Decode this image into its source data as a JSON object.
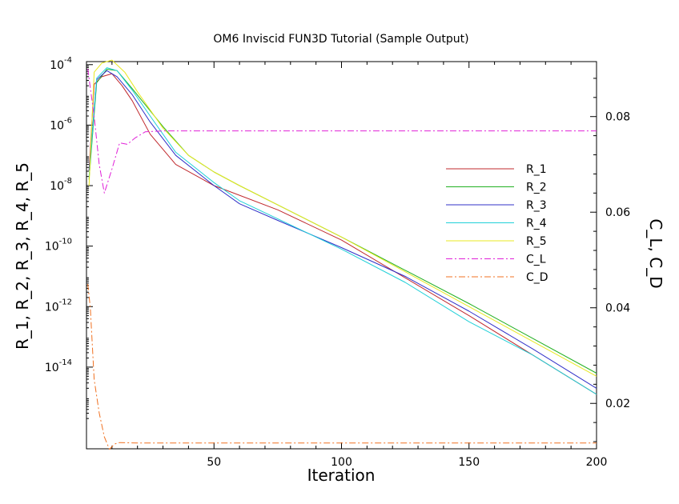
{
  "chart_data": {
    "type": "line",
    "title": "OM6 Inviscid FUN3D Tutorial (Sample Output)",
    "xlabel": "Iteration",
    "ylabel_left": "R_1, R_2, R_3, R_4, R_5",
    "ylabel_right": "C_L, C_D",
    "xlim": [
      0,
      200
    ],
    "ylim_left_log10": [
      -16.7,
      -3.9
    ],
    "ylim_right": [
      0.0105,
      0.0915
    ],
    "x_ticks": [
      50,
      100,
      150,
      200
    ],
    "x_tick_labels": [
      "50",
      "100",
      "150",
      "200"
    ],
    "y_left_ticks_exp": [
      -4,
      -6,
      -8,
      -10,
      -12,
      -14
    ],
    "y_left_tick_labels": [
      {
        "base": "10",
        "exp": "-4"
      },
      {
        "base": "10",
        "exp": "-6"
      },
      {
        "base": "10",
        "exp": "-8"
      },
      {
        "base": "10",
        "exp": "-10"
      },
      {
        "base": "10",
        "exp": "-12"
      },
      {
        "base": "10",
        "exp": "-14"
      }
    ],
    "y_right_ticks": [
      0.02,
      0.04,
      0.06,
      0.08
    ],
    "y_right_tick_labels": [
      "0.02",
      "0.04",
      "0.06",
      "0.08"
    ],
    "legend_position": "right-center",
    "series": [
      {
        "name": "R_1",
        "axis": "left",
        "scale": "log10",
        "color": "#c0282d",
        "dash": "",
        "x": [
          1,
          3,
          6,
          10,
          14,
          18,
          25,
          35,
          50,
          75,
          100,
          150,
          175,
          200
        ],
        "y": [
          -7.5,
          -4.65,
          -4.4,
          -4.3,
          -4.7,
          -5.2,
          -6.3,
          -7.3,
          -8.0,
          -8.8,
          -9.8,
          -12.3,
          -13.6,
          -14.9
        ]
      },
      {
        "name": "R_2",
        "axis": "left",
        "scale": "log10",
        "color": "#22b022",
        "dash": "",
        "x": [
          1,
          4,
          8,
          12,
          18,
          30,
          40,
          50,
          60,
          100,
          150,
          200
        ],
        "y": [
          -7.8,
          -4.6,
          -4.15,
          -4.2,
          -4.8,
          -6.05,
          -7.0,
          -7.55,
          -8.0,
          -9.7,
          -11.9,
          -14.2
        ]
      },
      {
        "name": "R_3",
        "axis": "left",
        "scale": "log10",
        "color": "#3030c8",
        "dash": "",
        "x": [
          1,
          4,
          8,
          12,
          18,
          25,
          35,
          50,
          60,
          75,
          100,
          125,
          150,
          175,
          200
        ],
        "y": [
          -7.5,
          -4.5,
          -4.2,
          -4.4,
          -5.0,
          -5.9,
          -7.0,
          -8.0,
          -8.6,
          -9.15,
          -10.05,
          -11.0,
          -12.15,
          -13.4,
          -14.7
        ]
      },
      {
        "name": "R_4",
        "axis": "left",
        "scale": "log10",
        "color": "#20d0d8",
        "dash": "",
        "x": [
          1,
          4,
          8,
          12,
          18,
          25,
          35,
          50,
          60,
          75,
          100,
          125,
          150,
          175,
          200
        ],
        "y": [
          -7.7,
          -4.45,
          -4.1,
          -4.2,
          -4.85,
          -5.7,
          -6.9,
          -7.9,
          -8.5,
          -9.1,
          -10.1,
          -11.2,
          -12.5,
          -13.6,
          -14.9
        ]
      },
      {
        "name": "R_5",
        "axis": "left",
        "scale": "log10",
        "color": "#e8e820",
        "dash": "",
        "x": [
          1,
          3,
          6,
          10,
          15,
          20,
          30,
          40,
          50,
          60,
          100,
          150,
          200
        ],
        "y": [
          -8.0,
          -4.25,
          -3.95,
          -3.85,
          -4.25,
          -4.9,
          -6.1,
          -7.0,
          -7.55,
          -8.0,
          -9.7,
          -12.0,
          -14.3
        ]
      },
      {
        "name": "C_L",
        "axis": "right",
        "scale": "linear",
        "color": "#e020d8",
        "dash": "8,3,2,3",
        "x": [
          0.5,
          3,
          5,
          7,
          10,
          13,
          16,
          19,
          23,
          30,
          60,
          100,
          150,
          200
        ],
        "y": [
          0.09,
          0.08,
          0.07,
          0.064,
          0.069,
          0.0745,
          0.0742,
          0.0755,
          0.0768,
          0.077,
          0.077,
          0.077,
          0.077,
          0.077
        ]
      },
      {
        "name": "C_D",
        "axis": "right",
        "scale": "linear",
        "color": "#f07020",
        "dash": "8,3,2,3",
        "x": [
          0.5,
          1.5,
          3,
          5,
          7,
          9,
          11,
          13,
          20,
          50,
          100,
          150,
          200
        ],
        "y": [
          0.045,
          0.04,
          0.025,
          0.018,
          0.013,
          0.0104,
          0.0115,
          0.0118,
          0.0117,
          0.0117,
          0.0117,
          0.0117,
          0.0117
        ]
      }
    ]
  }
}
